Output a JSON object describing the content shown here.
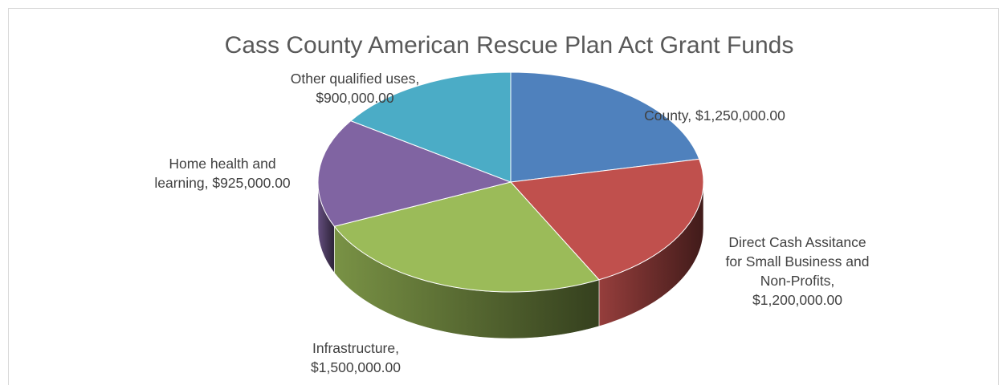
{
  "chart_data": {
    "type": "pie",
    "title": "Cass County American Rescue Plan Act Grant Funds",
    "categories": [
      "County",
      "Direct Cash Assitance for Small Business and Non-Profits",
      "Infrastructure",
      "Home health and learning",
      "Other qualified uses"
    ],
    "values": [
      1250000,
      1200000,
      1500000,
      925000,
      900000
    ],
    "value_labels": [
      "$1,250,000.00",
      "$1,200,000.00",
      "$1,500,000.00",
      "$925,000.00",
      "$900,000.00"
    ],
    "colors": [
      "#4f81bd",
      "#c0504d",
      "#9bbb59",
      "#8064a2",
      "#4bacc6"
    ],
    "legend": "none",
    "style": "3d-pie"
  },
  "labels": [
    {
      "lines": [
        "County, $1,250,000.00"
      ]
    },
    {
      "lines": [
        "Direct Cash Assitance",
        "for Small Business and",
        "Non-Profits,",
        "$1,200,000.00"
      ]
    },
    {
      "lines": [
        "Infrastructure,",
        "$1,500,000.00"
      ]
    },
    {
      "lines": [
        "Home health and",
        "learning, $925,000.00"
      ]
    },
    {
      "lines": [
        "Other qualified uses,",
        "$900,000.00"
      ]
    }
  ]
}
